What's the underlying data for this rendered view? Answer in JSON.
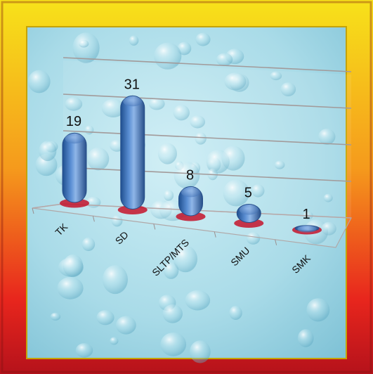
{
  "chart_data": {
    "type": "bar",
    "style": "3d-cylinder",
    "categories": [
      "TK",
      "SD",
      "SLTP/MTS",
      "SMU",
      "SMK"
    ],
    "values": [
      19,
      31,
      8,
      5,
      1
    ],
    "data_labels": [
      "19",
      "31",
      "8",
      "5",
      "1"
    ],
    "title": "",
    "xlabel": "",
    "ylabel": "",
    "ylim": [
      0,
      40
    ],
    "grid": true,
    "legend": "none",
    "bar_color": "#3e6fb4",
    "frame_gradient": [
      "#f7e21a",
      "#f59a1c",
      "#e8261d",
      "#b5121b"
    ],
    "plot_background": "#a9dbe8"
  }
}
